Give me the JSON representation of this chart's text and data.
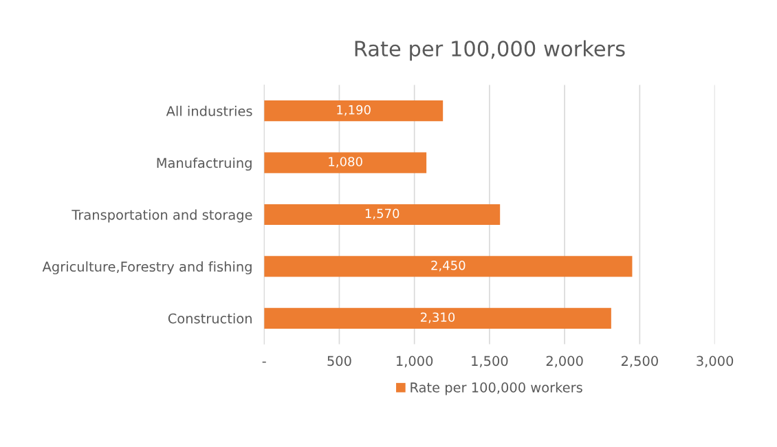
{
  "chart_data": {
    "type": "bar",
    "orientation": "horizontal",
    "title": "Rate per 100,000 workers",
    "categories": [
      "All industries",
      "Manufactruing",
      "Transportation and storage",
      "Agriculture,Forestry and fishing",
      "Construction"
    ],
    "series": [
      {
        "name": "Rate per 100,000 workers",
        "color": "#ed7d31",
        "values": [
          1190,
          1080,
          1570,
          2450,
          2310
        ],
        "value_labels": [
          "1,190",
          "1,080",
          "1,570",
          "2,450",
          "2,310"
        ]
      }
    ],
    "xlim": [
      0,
      3000
    ],
    "xticks": [
      {
        "value": 0,
        "label": "-"
      },
      500,
      {
        "value": 1000,
        "label": "1,000"
      },
      {
        "value": 1500,
        "label": "1,500"
      },
      {
        "value": 2000,
        "label": "2,000"
      },
      {
        "value": 2500,
        "label": "2,500"
      },
      {
        "value": 3000,
        "label": "3,000"
      }
    ],
    "grid": "x",
    "legend": "bottom"
  }
}
